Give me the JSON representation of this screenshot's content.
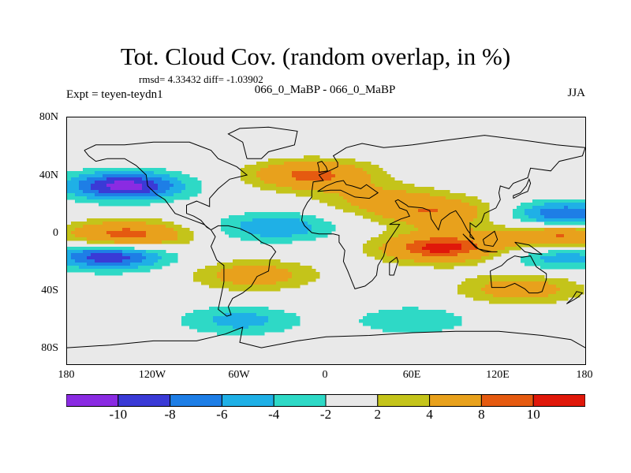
{
  "title": "Tot. Cloud Cov. (random overlap, in %)",
  "stats": "rmsd= 4.33432 diff= -1.03902",
  "expt": "Expt = teyen-teydn1",
  "center_label": "066_0_MaBP - 066_0_MaBP",
  "season": "JJA",
  "y_ticks": [
    "80N",
    "40N",
    "0",
    "40S",
    "80S"
  ],
  "x_ticks": [
    "180",
    "120W",
    "60W",
    "0",
    "60E",
    "120E",
    "180"
  ],
  "colorbar": {
    "labels": [
      "-10",
      "-8",
      "-6",
      "-4",
      "-2",
      "2",
      "4",
      "8",
      "10"
    ],
    "colors": [
      "#8a2be2",
      "#3a3ad6",
      "#1e7ee6",
      "#1fb0e6",
      "#2ed9c6",
      "#e8e8e8",
      "#c4c41a",
      "#e8a11c",
      "#e55a10",
      "#e0180a"
    ]
  },
  "chart_data": {
    "type": "heatmap",
    "x_range": [
      -180,
      180
    ],
    "y_range": [
      -90,
      90
    ],
    "levels": [
      -10,
      -8,
      -6,
      -4,
      -2,
      2,
      4,
      8,
      10
    ],
    "anomaly_features": [
      {
        "lon": -140,
        "lat": 40,
        "value": -11
      },
      {
        "lon": -140,
        "lat": 3,
        "value": 11
      },
      {
        "lon": -150,
        "lat": -10,
        "value": -11
      },
      {
        "lon": 165,
        "lat": 18,
        "value": -9
      },
      {
        "lon": 165,
        "lat": 3,
        "value": 11
      },
      {
        "lon": 165,
        "lat": -10,
        "value": -7
      },
      {
        "lon": 80,
        "lat": -5,
        "value": 11
      },
      {
        "lon": 80,
        "lat": 20,
        "value": 7
      },
      {
        "lon": -10,
        "lat": 48,
        "value": 9
      },
      {
        "lon": -50,
        "lat": -25,
        "value": 6
      },
      {
        "lon": 135,
        "lat": -35,
        "value": 6
      },
      {
        "lon": -60,
        "lat": -58,
        "value": -5
      },
      {
        "lon": 60,
        "lat": -58,
        "value": -4
      },
      {
        "lon": -35,
        "lat": 10,
        "value": -6
      },
      {
        "lon": 40,
        "lat": 30,
        "value": 5
      }
    ]
  }
}
